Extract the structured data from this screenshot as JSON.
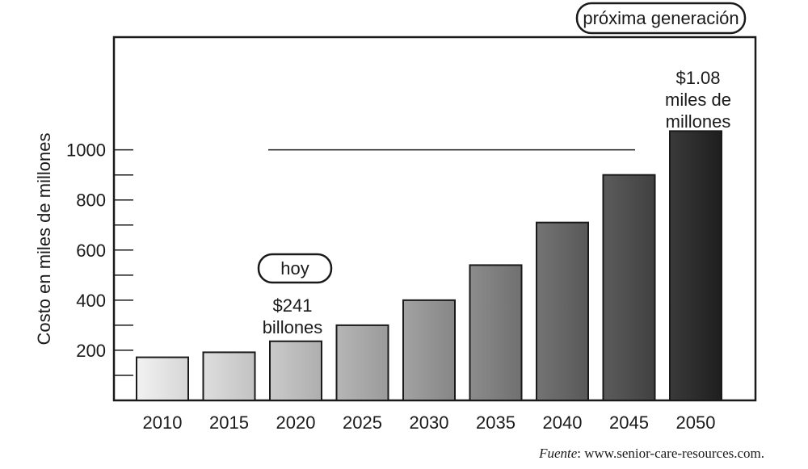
{
  "chart_data": {
    "type": "bar",
    "categories": [
      "2010",
      "2015",
      "2020",
      "2025",
      "2030",
      "2035",
      "2040",
      "2045",
      "2050"
    ],
    "values": [
      172,
      192,
      236,
      300,
      400,
      540,
      710,
      900,
      1075
    ],
    "ylabel": "Costo en miles de millones",
    "yticks": [
      200,
      400,
      600,
      800,
      1000
    ],
    "ylim": [
      0,
      1450
    ],
    "grid": false,
    "bar_colors": [
      "#f2f2f2",
      "#dedede",
      "#cacaca",
      "#b6b6b6",
      "#a2a2a2",
      "#8c8c8c",
      "#747474",
      "#5c5c5c",
      "#3a3a3a"
    ],
    "annotations": {
      "today_pill": "hoy",
      "today_value_line1": "$241",
      "today_value_line2": "billones",
      "next_gen_pill": "próxima generación",
      "next_value_line1": "$1.08",
      "next_value_line2": "miles de",
      "next_value_line3": "millones"
    }
  },
  "source": {
    "prefix": "Fuente",
    "text": ": www.senior-care-resources.com."
  }
}
